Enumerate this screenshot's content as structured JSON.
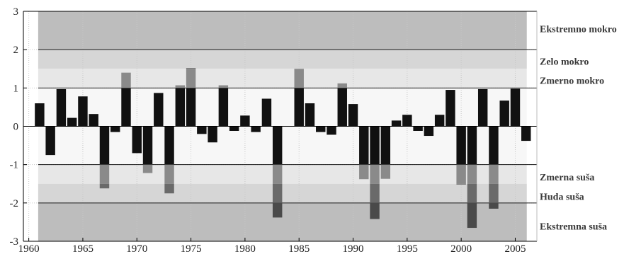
{
  "chart_data": {
    "type": "bar",
    "title": "",
    "xlabel": "",
    "ylabel": "",
    "xlim": [
      1959.5,
      2007
    ],
    "ylim": [
      -3,
      3
    ],
    "xticks": [
      1960,
      1965,
      1970,
      1975,
      1980,
      1985,
      1990,
      1995,
      2000,
      2005
    ],
    "yticks": [
      -3,
      -2,
      -1,
      0,
      1,
      2,
      3
    ],
    "grid": true,
    "bands": [
      {
        "name": "Ekstremno mokro",
        "from": 2,
        "to": 3,
        "color": "#bdbdbd"
      },
      {
        "name": "Zelo mokro",
        "from": 1.5,
        "to": 2,
        "color": "#d6d6d6"
      },
      {
        "name": "Zmerno mokro",
        "from": 1,
        "to": 1.5,
        "color": "#e7e7e7"
      },
      {
        "name": "Zmerna suša",
        "from": -1.5,
        "to": -1,
        "color": "#e7e7e7"
      },
      {
        "name": "Huda suša",
        "from": -2,
        "to": -1.5,
        "color": "#d6d6d6"
      },
      {
        "name": "Ekstremna suša",
        "from": -3,
        "to": -2,
        "color": "#bdbdbd"
      }
    ],
    "band_colors": {
      "zmerno": "#8a8a8a",
      "zelo": "#6a6a6a",
      "ekstremno": "#4a4a4a",
      "normal": "#111111"
    },
    "x": [
      1961,
      1962,
      1963,
      1964,
      1965,
      1966,
      1967,
      1968,
      1969,
      1970,
      1971,
      1972,
      1973,
      1974,
      1975,
      1976,
      1977,
      1978,
      1979,
      1980,
      1981,
      1982,
      1983,
      1984,
      1985,
      1986,
      1987,
      1988,
      1989,
      1990,
      1991,
      1992,
      1993,
      1994,
      1995,
      1996,
      1997,
      1998,
      1999,
      2000,
      2001,
      2002,
      2003,
      2004,
      2005,
      2006
    ],
    "values": [
      0.6,
      -0.75,
      0.97,
      0.22,
      0.78,
      0.32,
      -1.62,
      -0.15,
      1.4,
      -0.7,
      -1.22,
      0.87,
      -1.75,
      1.07,
      1.52,
      -0.2,
      -0.42,
      1.07,
      -0.12,
      0.28,
      -0.15,
      0.72,
      -2.38,
      0.0,
      1.5,
      0.6,
      -0.15,
      -0.22,
      1.12,
      0.58,
      -1.38,
      -2.42,
      -1.37,
      0.15,
      0.3,
      -0.12,
      -0.25,
      0.3,
      0.95,
      -1.52,
      -2.65,
      0.97,
      -2.15,
      0.67,
      0.98,
      -0.38
    ]
  }
}
